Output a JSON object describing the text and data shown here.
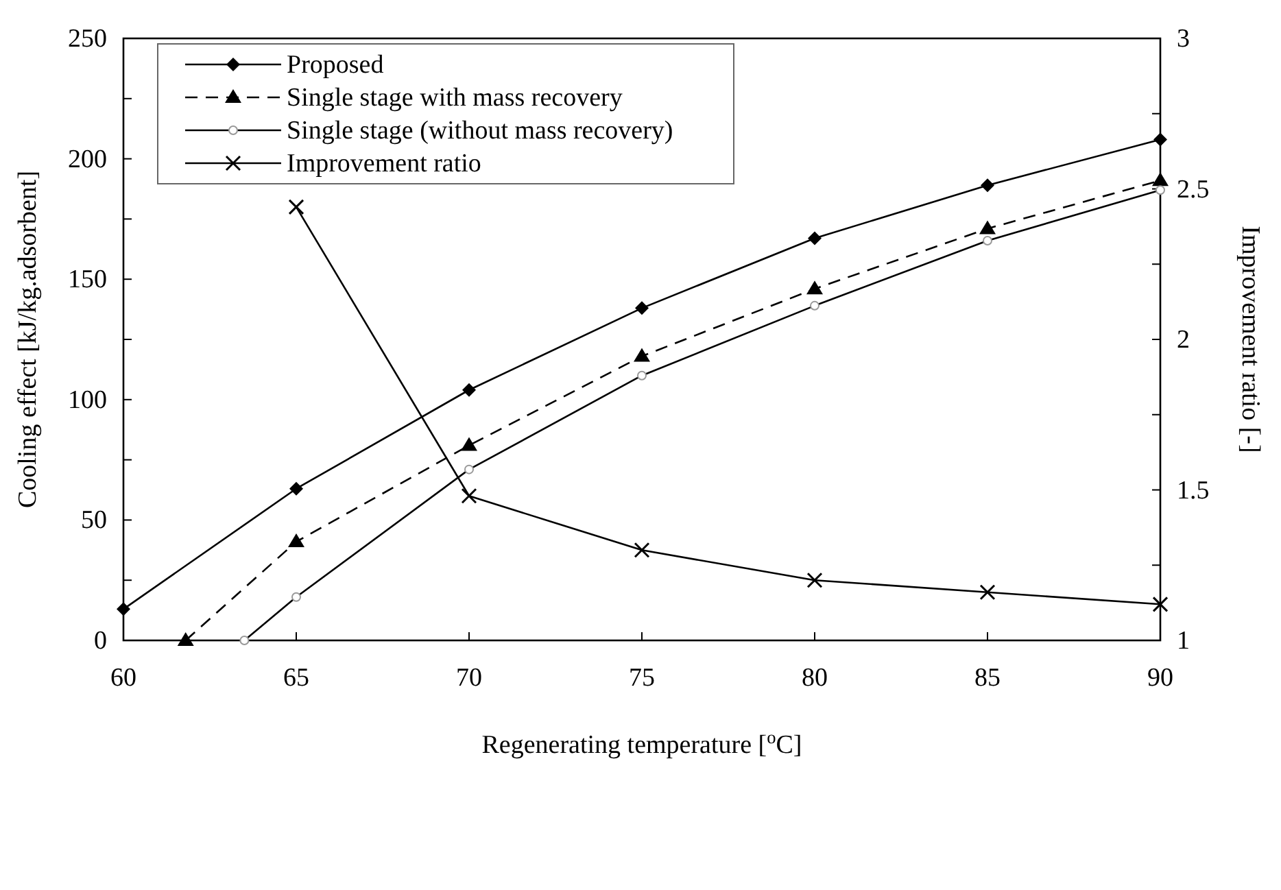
{
  "chart_data": {
    "type": "line",
    "xlabel": "Regenerating temperature [$^{o}$C]",
    "ylabel": "Cooling effect [kJ/kg.adsorbent]",
    "y2label": "Improvement ratio [-]",
    "xlim": [
      60,
      90
    ],
    "xticks": [
      60,
      65,
      70,
      75,
      80,
      85,
      90
    ],
    "ylim": [
      0,
      250
    ],
    "yticks": [
      0,
      {
        "value": 25,
        "label": null
      },
      50,
      {
        "value": 75,
        "label": null
      },
      100,
      {
        "value": 125,
        "label": null
      },
      150,
      {
        "value": 175,
        "label": null
      },
      200,
      {
        "value": 225,
        "label": null
      },
      250
    ],
    "y2lim": [
      1,
      3
    ],
    "y2ticks": [
      1,
      {
        "value": 1.25,
        "label": null
      },
      1.5,
      {
        "value": 1.75,
        "label": null
      },
      2,
      {
        "value": 2.25,
        "label": null
      },
      2.5,
      {
        "value": 2.75,
        "label": null
      },
      3
    ],
    "legend": "top left",
    "grid": false,
    "series": [
      {
        "name": "Proposed",
        "color": "#000000",
        "marker": "diamond",
        "line_style": "solid",
        "x": [
          60,
          65,
          70,
          75,
          80,
          85,
          90
        ],
        "values": [
          13,
          63,
          104,
          138,
          167,
          189,
          208
        ]
      },
      {
        "name": "Single stage with mass recovery",
        "color": "#000000",
        "marker": "triangle",
        "line_style": "dashed",
        "x": [
          61.8,
          65,
          70,
          75,
          80,
          85,
          90
        ],
        "values": [
          0,
          41,
          81,
          118,
          146,
          171,
          191
        ]
      },
      {
        "name": "Single stage (without mass recovery)",
        "color": "#000000",
        "marker": "circle",
        "line_style": "solid",
        "x": [
          63.5,
          65,
          70,
          75,
          80,
          85,
          90
        ],
        "values": [
          0,
          18,
          71,
          110,
          139,
          166,
          187
        ]
      },
      {
        "name": "Improvement ratio",
        "color": "#000000",
        "marker": "cross",
        "line_style": "solid",
        "axis": "y2",
        "x": [
          65,
          70,
          75,
          80,
          85,
          90
        ],
        "values": [
          2.44,
          1.48,
          1.3,
          1.2,
          1.16,
          1.12
        ]
      }
    ]
  }
}
